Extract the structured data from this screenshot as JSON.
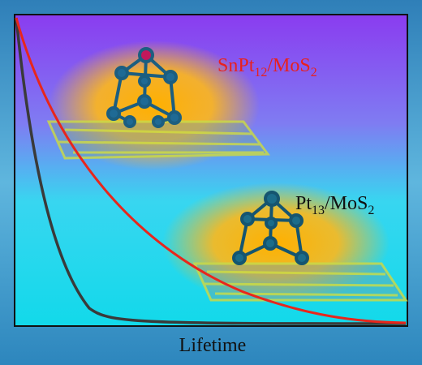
{
  "labels": [
    {
      "parts": [
        "SnPt",
        "12",
        "/MoS",
        "2"
      ],
      "color": "#e8201e"
    },
    {
      "parts": [
        "Pt",
        "13",
        "/MoS",
        "2"
      ],
      "color": "#111111"
    }
  ],
  "x_axis_label": "Lifetime"
}
